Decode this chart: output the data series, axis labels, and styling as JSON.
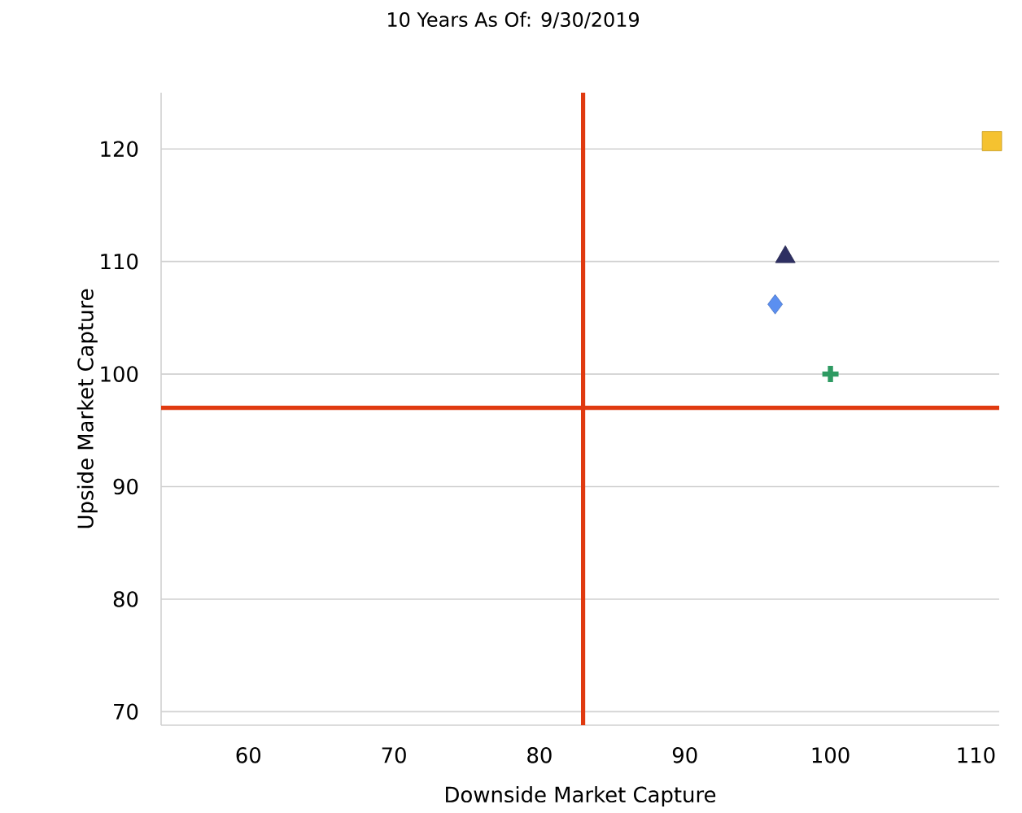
{
  "chart_data": {
    "type": "scatter",
    "title": "10 Years As Of: 9/30/2019",
    "xlabel": "Downside Market Capture",
    "ylabel": "Upside Market Capture",
    "xlim": [
      54,
      111.6
    ],
    "ylim": [
      68.8,
      125
    ],
    "xticks": [
      60,
      70,
      80,
      90,
      100,
      110
    ],
    "yticks": [
      70,
      80,
      90,
      100,
      110,
      120
    ],
    "grid": "y",
    "series": [
      {
        "color": "#f5c230",
        "marker": "square",
        "x": [
          111.1
        ],
        "values": [
          120.7
        ]
      },
      {
        "color": "#2e2f62",
        "marker": "triangle",
        "x": [
          96.9
        ],
        "values": [
          110.4
        ]
      },
      {
        "color": "#5b8ff0",
        "marker": "diamond",
        "x": [
          96.2
        ],
        "values": [
          106.2
        ]
      },
      {
        "color": "#2e9a62",
        "marker": "cross",
        "x": [
          100
        ],
        "values": [
          100
        ]
      }
    ],
    "ref_lines": [
      {
        "axis": "x",
        "value": 83,
        "color": "#e03a10"
      },
      {
        "axis": "y",
        "value": 97,
        "color": "#e03a10"
      }
    ]
  }
}
